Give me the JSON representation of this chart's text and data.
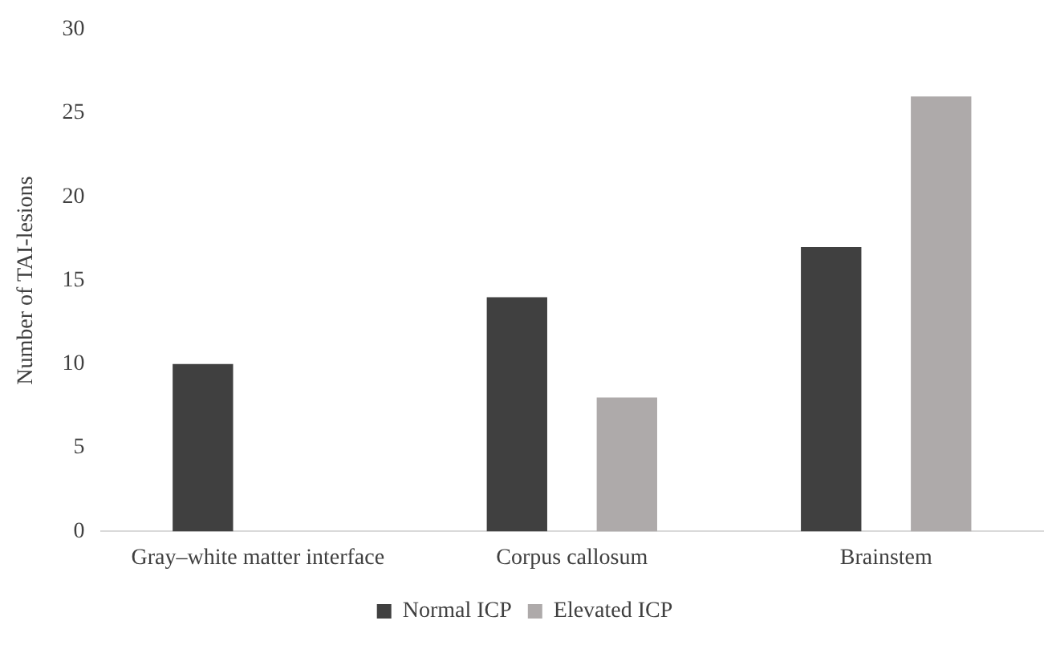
{
  "chart_data": {
    "type": "bar",
    "ylabel": "Number of TAI-lesions",
    "categories": [
      "Gray–white matter interface",
      "Corpus callosum",
      "Brainstem"
    ],
    "series": [
      {
        "name": "Normal ICP",
        "color": "#404040",
        "values": [
          10,
          14,
          17
        ]
      },
      {
        "name": "Elevated ICP",
        "color": "#aeaaaa",
        "values": [
          0,
          8,
          26
        ]
      }
    ],
    "ylim": [
      0,
      30
    ],
    "yticks": [
      0,
      5,
      10,
      15,
      20,
      25,
      30
    ],
    "grid": false,
    "legend": "bottom"
  }
}
